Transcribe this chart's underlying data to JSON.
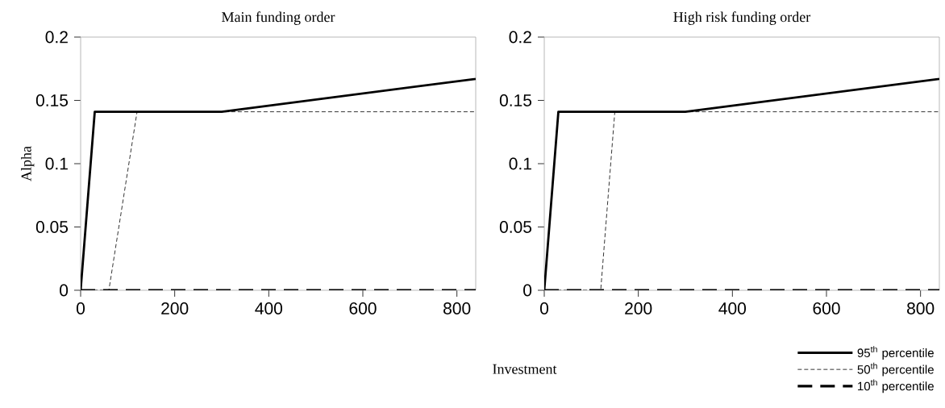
{
  "chart_data": [
    {
      "type": "line",
      "title": "Main funding order",
      "ylabel": "Alpha",
      "xlim": [
        0,
        840
      ],
      "ylim": [
        0,
        0.2
      ],
      "xticks": [
        0,
        200,
        400,
        600,
        800
      ],
      "yticks": [
        0,
        0.05,
        0.1,
        0.15,
        0.2
      ],
      "series": [
        {
          "color": "#000000",
          "line_style": "solid",
          "x": [
            0,
            30,
            300,
            840
          ],
          "values": [
            0,
            0.141,
            0.141,
            0.167
          ]
        },
        {
          "color": "#000000",
          "line_style": "dashed",
          "x": [
            0,
            60,
            120,
            840
          ],
          "values": [
            0,
            0,
            0.141,
            0.141
          ]
        },
        {
          "color": "#000000",
          "line_style": "dashed",
          "x": [
            0,
            840
          ],
          "values": [
            0,
            0
          ]
        }
      ]
    },
    {
      "type": "line",
      "title": "High risk funding order",
      "xlabel": "Investment",
      "legend": "bottom right",
      "xlim": [
        0,
        840
      ],
      "ylim": [
        0,
        0.2
      ],
      "xticks": [
        0,
        200,
        400,
        600,
        800
      ],
      "yticks": [
        0,
        0.05,
        0.1,
        0.15,
        0.2
      ],
      "series": [
        {
          "name": "95$^{th}$ percentile",
          "color": "#000000",
          "line_style": "solid",
          "x": [
            0,
            30,
            300,
            840
          ],
          "values": [
            0,
            0.141,
            0.141,
            0.167
          ]
        },
        {
          "name": "50$^{th}$ percentile",
          "color": "#000000",
          "line_style": "dashed",
          "x": [
            0,
            120,
            150,
            840
          ],
          "values": [
            0,
            0,
            0.141,
            0.141
          ]
        },
        {
          "name": "10$^{th}$ percentile",
          "color": "#000000",
          "line_style": "dashed",
          "x": [
            0,
            840
          ],
          "values": [
            0,
            0
          ]
        }
      ]
    }
  ]
}
